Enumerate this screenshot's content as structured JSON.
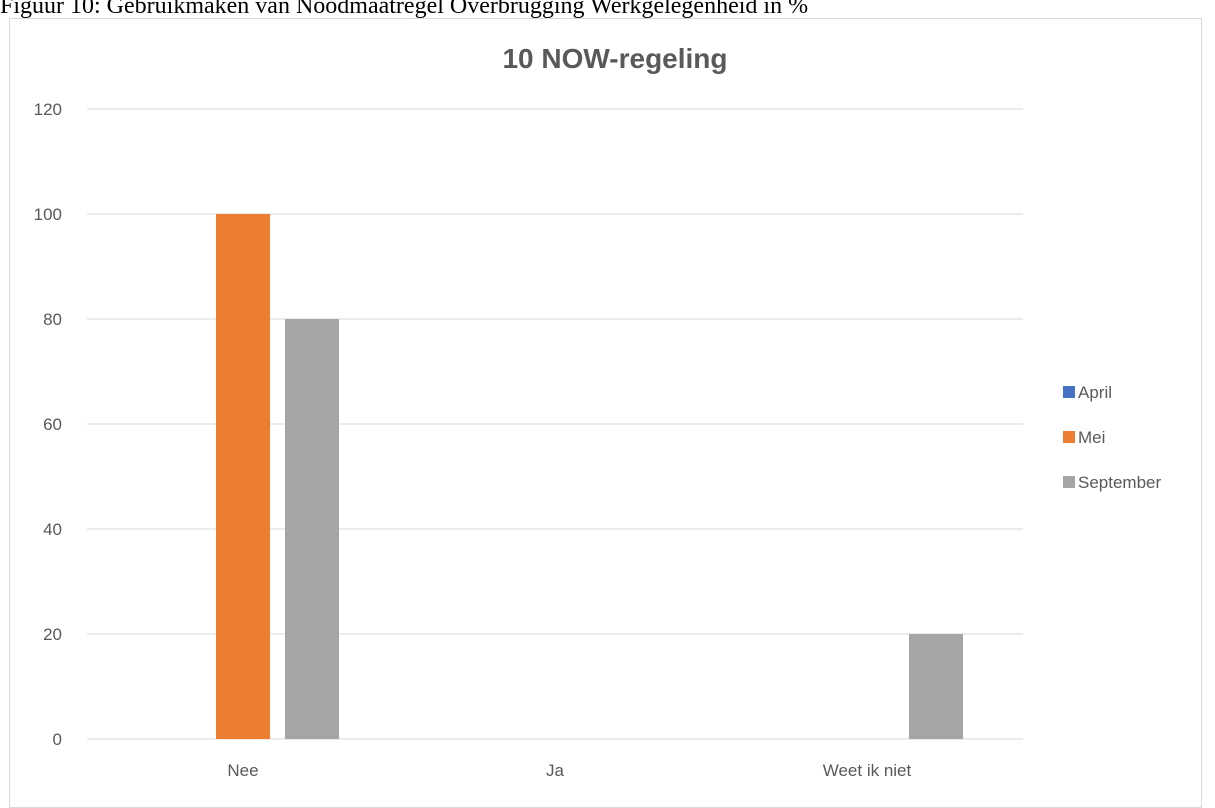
{
  "figure": {
    "caption": "Figuur 10: Gebruikmaken van Noodmaatregel Overbrugging Werkgelegenheid in %"
  },
  "chart_data": {
    "type": "bar",
    "title": "10 NOW-regeling",
    "categories": [
      "Nee",
      "Ja",
      "Weet ik niet"
    ],
    "series": [
      {
        "name": "April",
        "values": [
          0,
          0,
          0
        ],
        "color": "#4472c4"
      },
      {
        "name": "Mei",
        "values": [
          100,
          0,
          0
        ],
        "color": "#ed7d31"
      },
      {
        "name": "September",
        "values": [
          80,
          0,
          20
        ],
        "color": "#a5a5a5"
      }
    ],
    "ylim": [
      0,
      120
    ],
    "yticks": [
      0,
      20,
      40,
      60,
      80,
      100,
      120
    ],
    "grid": true,
    "legend_position": "right",
    "xlabel": "",
    "ylabel": ""
  }
}
